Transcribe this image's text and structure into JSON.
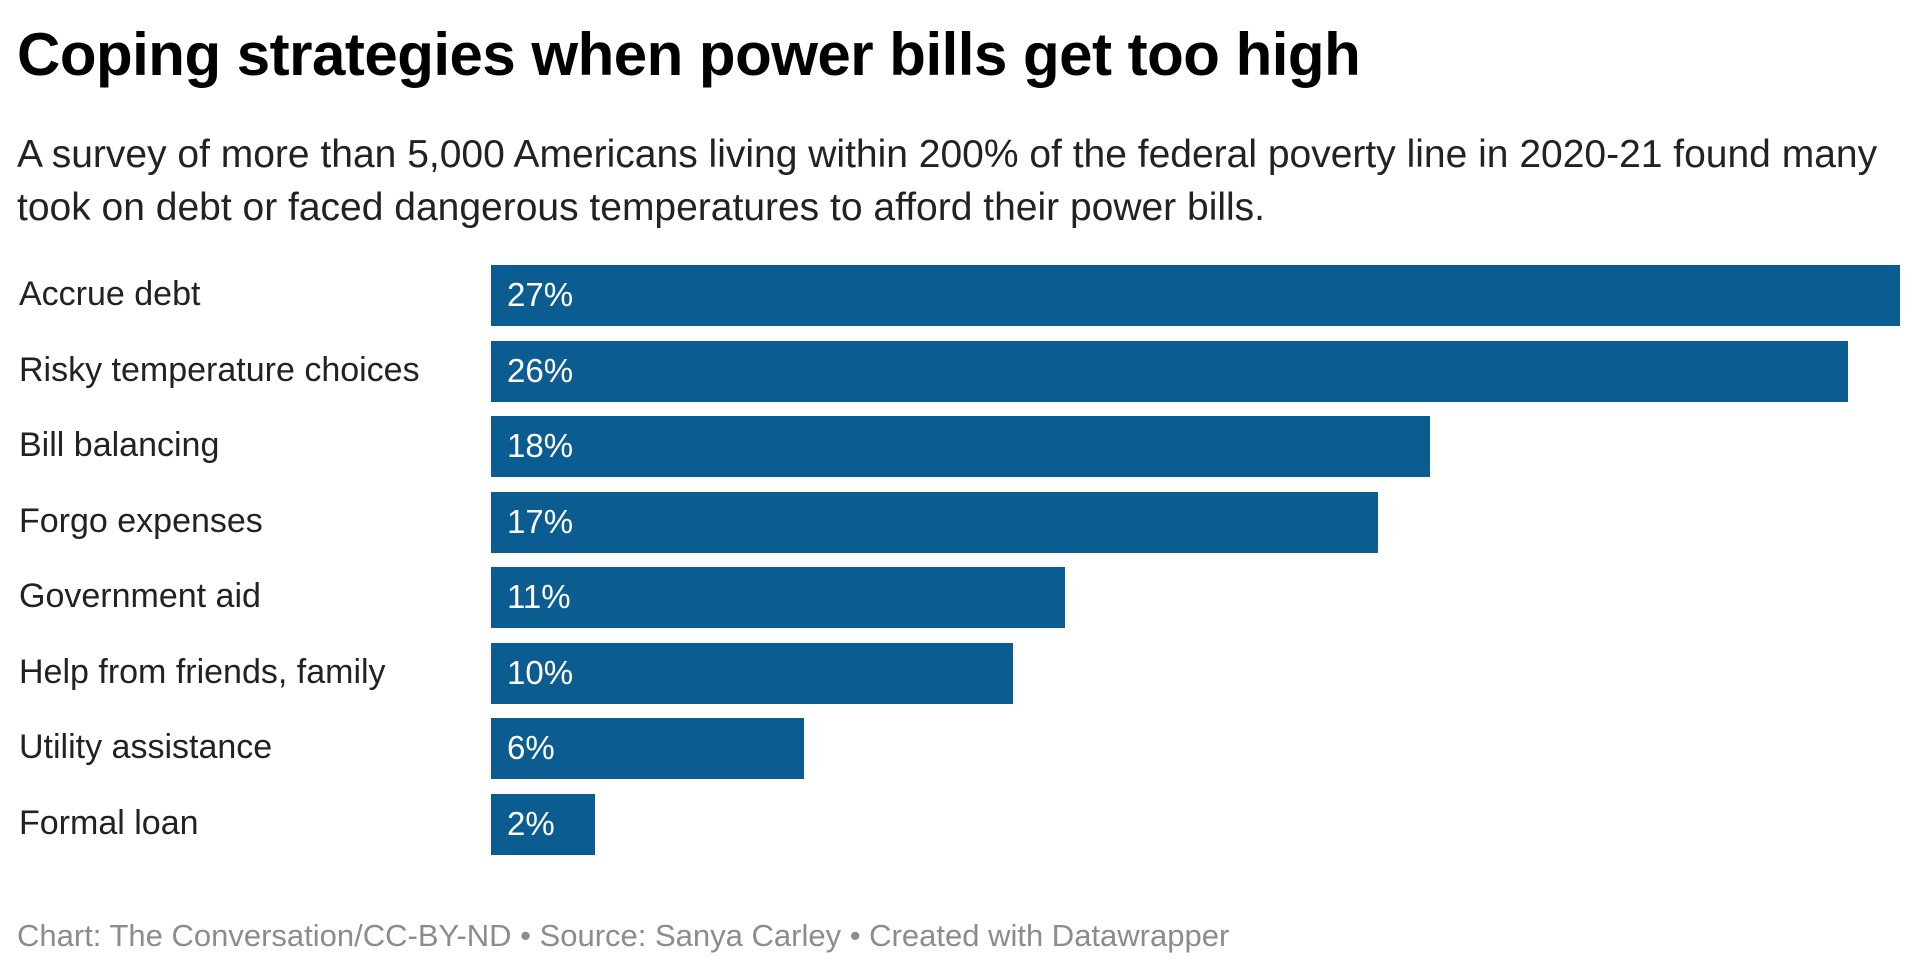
{
  "title": "Coping strategies when power bills get too high",
  "subtitle": "A survey of more than 5,000 Americans living within 200% of the federal poverty line in 2020-21 found many took on debt or faced dangerous temperatures to afford their power bills.",
  "footer": "Chart: The Conversation/CC-BY-ND • Source: Sanya Carley • Created with Datawrapper",
  "chart_data": {
    "type": "bar",
    "orientation": "horizontal",
    "title": "Coping strategies when power bills get too high",
    "categories": [
      "Accrue debt",
      "Risky temperature choices",
      "Bill balancing",
      "Forgo expenses",
      "Government aid",
      "Help from friends, family",
      "Utility assistance",
      "Formal loan"
    ],
    "values": [
      27,
      26,
      18,
      17,
      11,
      10,
      6,
      2
    ],
    "labels": [
      "27%",
      "26%",
      "18%",
      "17%",
      "11%",
      "10%",
      "6%",
      "2%"
    ],
    "unit": "%",
    "xlim": [
      0,
      27
    ],
    "grid": false,
    "bar_color": "#0b5c91"
  }
}
